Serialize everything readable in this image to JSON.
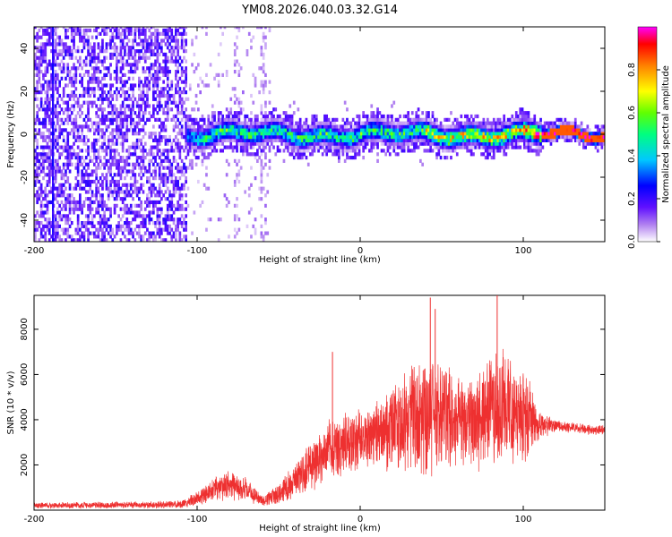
{
  "figure": {
    "title": "YM08.2026.040.03.32.G14"
  },
  "chart_data": [
    {
      "type": "heatmap",
      "title": "",
      "xlabel": "Height of straight line (km)",
      "ylabel": "Frequency (Hz)",
      "xlim": [
        -200,
        150
      ],
      "ylim": [
        -50,
        50
      ],
      "x_ticks": [
        -200,
        -100,
        0,
        100
      ],
      "x_tick_labels": [
        "-200",
        "-100",
        "0",
        "100"
      ],
      "y_ticks": [
        -40,
        -20,
        0,
        20,
        40
      ],
      "y_tick_labels": [
        "-40",
        "-20",
        "0",
        "20",
        "40"
      ],
      "colorbar": {
        "label": "Normalized spectral amplitude",
        "range": [
          0,
          1
        ],
        "ticks": [
          0.0,
          0.2,
          0.4,
          0.6,
          0.8
        ],
        "tick_labels": [
          "0.0",
          "0.2",
          "0.4",
          "0.6",
          "0.8"
        ],
        "colormap": [
          "#ffffff",
          "#a070e8",
          "#5500ff",
          "#0000ff",
          "#00c8ff",
          "#00ff80",
          "#80ff00",
          "#ffff00",
          "#ff8000",
          "#ff0000",
          "#ff00ff"
        ]
      },
      "regions": [
        {
          "name": "noise",
          "x_range": [
            -200,
            -107
          ],
          "freq_range": [
            -50,
            50
          ],
          "amplitude": 0.15
        },
        {
          "name": "sparse",
          "x_range": [
            -107,
            -55
          ],
          "freq_range": [
            -50,
            50
          ],
          "amplitude": 0.08
        },
        {
          "name": "signal-band",
          "x_range": [
            -107,
            150
          ],
          "center_freq": 0,
          "half_width": 6,
          "peak_amplitude": 1.0
        }
      ]
    },
    {
      "type": "line",
      "title": "",
      "xlabel": "Height of straight line (km)",
      "ylabel": "SNR (10 * v/v)",
      "xlim": [
        -200,
        150
      ],
      "ylim": [
        0,
        9500
      ],
      "x_ticks": [
        -200,
        -100,
        0,
        100
      ],
      "x_tick_labels": [
        "-200",
        "-100",
        "0",
        "100"
      ],
      "y_ticks": [
        2000,
        4000,
        6000,
        8000
      ],
      "y_tick_labels": [
        "2000",
        "4000",
        "6000",
        "8000"
      ],
      "series": [
        {
          "name": "SNR",
          "color": "#ee3030",
          "envelope_x": [
            -200,
            -110,
            -100,
            -90,
            -80,
            -70,
            -60,
            -50,
            -40,
            -30,
            -20,
            -10,
            0,
            10,
            20,
            30,
            40,
            50,
            60,
            70,
            80,
            90,
            100,
            110,
            120,
            130,
            140,
            150
          ],
          "envelope_center": [
            200,
            250,
            550,
            900,
            1100,
            900,
            400,
            700,
            1400,
            2100,
            2600,
            2900,
            3000,
            3300,
            3700,
            4000,
            4300,
            4200,
            4000,
            3900,
            4200,
            4400,
            4300,
            3700,
            3700,
            3650,
            3550,
            3550
          ],
          "envelope_spread": [
            150,
            180,
            350,
            600,
            700,
            600,
            300,
            500,
            900,
            1300,
            1500,
            1600,
            1600,
            1800,
            2200,
            2600,
            3000,
            2600,
            2300,
            2300,
            2700,
            2900,
            2500,
            700,
            300,
            250,
            250,
            250
          ],
          "spikes": [
            {
              "x": -17,
              "y": 7000
            },
            {
              "x": 43,
              "y": 9400
            },
            {
              "x": 46,
              "y": 8900
            },
            {
              "x": 84,
              "y": 9500
            }
          ]
        }
      ]
    }
  ]
}
